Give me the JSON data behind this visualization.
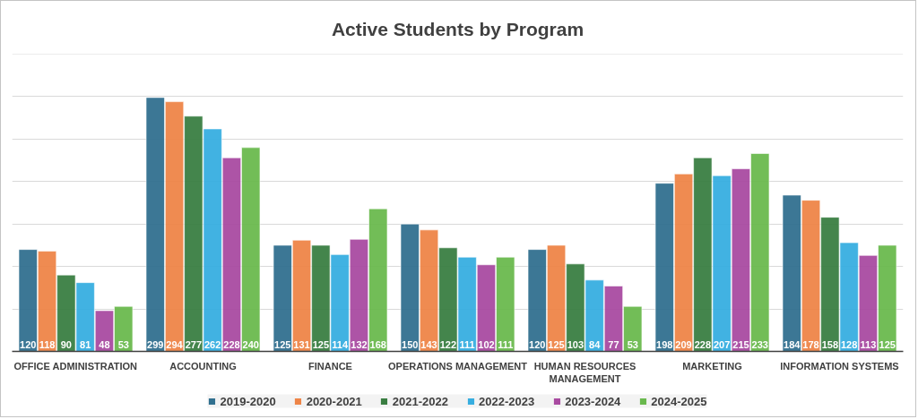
{
  "chart_data": {
    "type": "bar",
    "title": "Active Students by Program",
    "categories": [
      "OFFICE ADMINISTRATION",
      "ACCOUNTING",
      "FINANCE",
      "OPERATIONS MANAGEMENT",
      "HUMAN RESOURCES MANAGEMENT",
      "MARKETING",
      "INFORMATION SYSTEMS"
    ],
    "series": [
      {
        "name": "2019-2020",
        "color": "#31708f",
        "values": [
          120,
          299,
          125,
          150,
          120,
          198,
          184
        ]
      },
      {
        "name": "2020-2021",
        "color": "#ee8548",
        "values": [
          118,
          294,
          131,
          143,
          125,
          209,
          178
        ]
      },
      {
        "name": "2021-2022",
        "color": "#3a7e42",
        "values": [
          90,
          277,
          125,
          122,
          103,
          228,
          158
        ]
      },
      {
        "name": "2022-2023",
        "color": "#37aee0",
        "values": [
          81,
          262,
          114,
          111,
          84,
          207,
          128
        ]
      },
      {
        "name": "2023-2024",
        "color": "#a94ba1",
        "values": [
          48,
          228,
          132,
          102,
          77,
          215,
          113
        ]
      },
      {
        "name": "2024-2025",
        "color": "#6ab94e",
        "values": [
          53,
          240,
          168,
          111,
          53,
          233,
          125
        ]
      }
    ],
    "ylim": [
      0,
      350
    ],
    "yticks": [
      {
        "value": 0,
        "label": null
      },
      {
        "value": 50,
        "label": null
      },
      {
        "value": 100,
        "label": null
      },
      {
        "value": 150,
        "label": null
      },
      {
        "value": 200,
        "label": null
      },
      {
        "value": 250,
        "label": null
      },
      {
        "value": 300,
        "label": null
      },
      {
        "value": 350,
        "label": null
      }
    ],
    "grid": "y",
    "legend": "bottom",
    "tick_labels": "x",
    "data_labels": true
  }
}
